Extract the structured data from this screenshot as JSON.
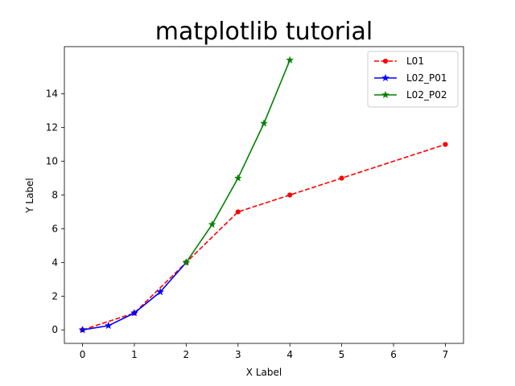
{
  "chart_data": {
    "type": "line",
    "title": "matplotlib tutorial",
    "xlabel": "X Label",
    "ylabel": "Y Label",
    "xlim": [
      -0.35,
      7.35
    ],
    "ylim": [
      -0.8,
      16.8
    ],
    "xticks": [
      0,
      1,
      2,
      3,
      4,
      5,
      6,
      7
    ],
    "yticks": [
      0,
      2,
      4,
      6,
      8,
      10,
      12,
      14
    ],
    "grid": false,
    "legend": "top-right",
    "series": [
      {
        "name": "L01",
        "color": "#ff0000",
        "linestyle": "dashed",
        "marker": "dot",
        "x": [
          0,
          1,
          2,
          3,
          4,
          5,
          7
        ],
        "y": [
          0,
          1,
          4,
          7,
          8,
          9,
          11
        ]
      },
      {
        "name": "L02_P01",
        "color": "#0000ff",
        "linestyle": "solid",
        "marker": "star",
        "x": [
          0,
          0.5,
          1,
          1.5,
          2
        ],
        "y": [
          0,
          0.25,
          1,
          2.25,
          4
        ]
      },
      {
        "name": "L02_P02",
        "color": "#008000",
        "linestyle": "solid",
        "marker": "star",
        "x": [
          2,
          2.5,
          3,
          3.5,
          4
        ],
        "y": [
          4,
          6.25,
          9,
          12.25,
          16
        ]
      }
    ]
  }
}
